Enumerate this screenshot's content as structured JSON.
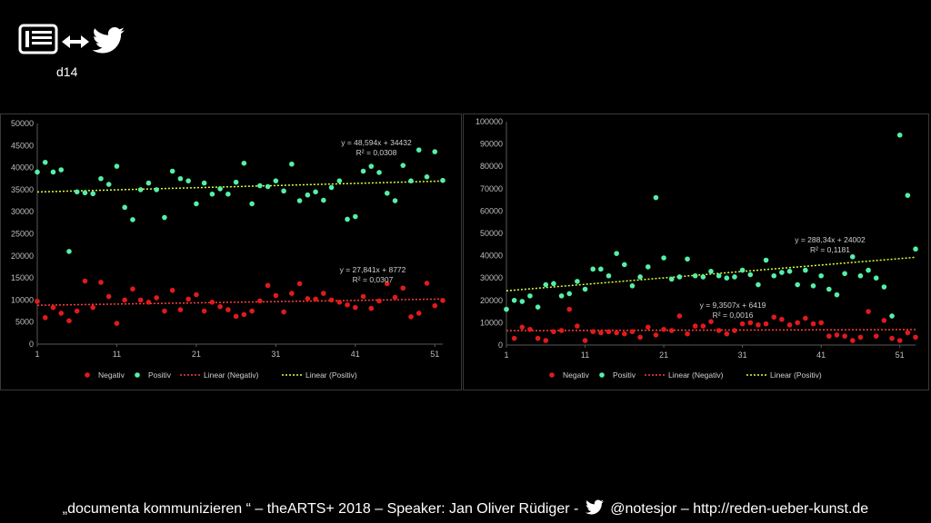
{
  "header": {
    "label": "d14",
    "icons": [
      "newspaper-icon",
      "bidirectional-arrow-icon",
      "twitter-bird-icon"
    ]
  },
  "footer": {
    "text_before": "„documenta kommunizieren “ – theARTS+ 2018 – Speaker: Jan Oliver Rüdiger -",
    "text_after": "@notesjor – http://reden-ueber-kunst.de",
    "icon": "twitter-bird-icon"
  },
  "colors": {
    "negativ": "#e01b1b",
    "positiv": "#55efa8",
    "trend_neg": "#ff3b3b",
    "trend_pos": "#d9ff3a",
    "axis": "#bfbfbf",
    "grid": "#595959"
  },
  "chart_data": [
    {
      "type": "scatter",
      "title": "",
      "xlabel": "",
      "ylabel": "",
      "xlim": [
        1,
        52
      ],
      "ylim": [
        0,
        50000
      ],
      "yticks": [
        "0",
        "5000",
        "10000",
        "15000",
        "20000",
        "25000",
        "30000",
        "35000",
        "40000",
        "45000",
        "50000"
      ],
      "xticks": [
        "1",
        "11",
        "21",
        "31",
        "41",
        "51"
      ],
      "legend": [
        "Negativ",
        "Positiv",
        "Linear (Negativ)",
        "Linear (Positiv)"
      ],
      "series": [
        {
          "name": "Negativ",
          "x": [
            1,
            2,
            3,
            4,
            5,
            6,
            7,
            8,
            9,
            10,
            11,
            12,
            13,
            14,
            15,
            16,
            17,
            18,
            19,
            20,
            21,
            22,
            23,
            24,
            25,
            26,
            27,
            28,
            29,
            30,
            31,
            32,
            33,
            34,
            35,
            36,
            37,
            38,
            39,
            40,
            41,
            42,
            43,
            44,
            45,
            46,
            47,
            48,
            49,
            50,
            51,
            52
          ],
          "values": [
            9700,
            6000,
            8300,
            7000,
            5300,
            7500,
            14300,
            8300,
            14000,
            10800,
            4700,
            10000,
            12500,
            10000,
            9500,
            10500,
            7500,
            12200,
            7800,
            10200,
            11200,
            7500,
            9500,
            8500,
            7800,
            6300,
            6700,
            7500,
            9800,
            13300,
            11000,
            7300,
            11500,
            13700,
            10300,
            10200,
            11500,
            10000,
            9500,
            8900,
            8300,
            10800,
            8100,
            9800,
            13700,
            10600,
            12700,
            6200,
            7000,
            13800,
            8700,
            9900
          ]
        },
        {
          "name": "Positiv",
          "x": [
            1,
            2,
            3,
            4,
            5,
            6,
            7,
            8,
            9,
            10,
            11,
            12,
            13,
            14,
            15,
            16,
            17,
            18,
            19,
            20,
            21,
            22,
            23,
            24,
            25,
            26,
            27,
            28,
            29,
            30,
            31,
            32,
            33,
            34,
            35,
            36,
            37,
            38,
            39,
            40,
            41,
            42,
            43,
            44,
            45,
            46,
            47,
            48,
            49,
            50,
            51,
            52
          ],
          "values": [
            39000,
            41200,
            39000,
            39500,
            21000,
            34500,
            34300,
            34100,
            37500,
            36200,
            40300,
            31000,
            28200,
            35000,
            36500,
            35000,
            28700,
            39200,
            37500,
            37000,
            31800,
            36500,
            34000,
            35200,
            34000,
            36700,
            41000,
            31800,
            35900,
            35700,
            37000,
            34700,
            40800,
            32500,
            33800,
            34500,
            32600,
            35500,
            37000,
            28300,
            28900,
            39200,
            40300,
            38900,
            34200,
            32500,
            40500,
            37000,
            44000,
            37900,
            43600,
            37100
          ]
        },
        {
          "name": "Linear (Negativ)",
          "equation": "y = 27,841x + 8772",
          "r2": "R² = 0,0307",
          "slope": 27.841,
          "intercept": 8772
        },
        {
          "name": "Linear (Positiv)",
          "equation": "y = 48,594x + 34432",
          "r2": "R² = 0,0308",
          "slope": 48.594,
          "intercept": 34432
        }
      ]
    },
    {
      "type": "scatter",
      "title": "",
      "xlabel": "",
      "ylabel": "",
      "xlim": [
        1,
        53
      ],
      "ylim": [
        0,
        100000
      ],
      "yticks": [
        "0",
        "10000",
        "20000",
        "30000",
        "40000",
        "50000",
        "60000",
        "70000",
        "80000",
        "90000",
        "100000"
      ],
      "xticks": [
        "1",
        "11",
        "21",
        "31",
        "41",
        "51"
      ],
      "legend": [
        "Negativ",
        "Positiv",
        "Linear (Negativ)",
        "Linear (Positiv)"
      ],
      "series": [
        {
          "name": "Negativ",
          "x": [
            1,
            2,
            3,
            4,
            5,
            6,
            7,
            8,
            9,
            10,
            11,
            12,
            13,
            14,
            15,
            16,
            17,
            18,
            19,
            20,
            21,
            22,
            23,
            24,
            25,
            26,
            27,
            28,
            29,
            30,
            31,
            32,
            33,
            34,
            35,
            36,
            37,
            38,
            39,
            40,
            41,
            42,
            43,
            44,
            45,
            46,
            47,
            48,
            49,
            50,
            51,
            52,
            53
          ],
          "values": [
            16000,
            3000,
            8000,
            7000,
            3000,
            2000,
            6000,
            6500,
            16000,
            8500,
            2000,
            6000,
            5500,
            6000,
            5500,
            5000,
            6000,
            3500,
            8000,
            4500,
            7000,
            6500,
            13000,
            5000,
            8500,
            8500,
            10500,
            6500,
            5000,
            6500,
            9500,
            10000,
            9000,
            9500,
            12500,
            11500,
            9000,
            10000,
            12000,
            9500,
            10000,
            4000,
            4500,
            4000,
            2000,
            3500,
            15000,
            4000,
            11000,
            3000,
            2000,
            5500,
            3500
          ]
        },
        {
          "name": "Positiv",
          "x": [
            1,
            2,
            3,
            4,
            5,
            6,
            7,
            8,
            9,
            10,
            11,
            12,
            13,
            14,
            15,
            16,
            17,
            18,
            19,
            20,
            21,
            22,
            23,
            24,
            25,
            26,
            27,
            28,
            29,
            30,
            31,
            32,
            33,
            34,
            35,
            36,
            37,
            38,
            39,
            40,
            41,
            42,
            43,
            44,
            45,
            46,
            47,
            48,
            49,
            50,
            51,
            52,
            53
          ],
          "values": [
            16000,
            20000,
            19500,
            22000,
            17000,
            27000,
            27500,
            22000,
            23000,
            28500,
            25000,
            34000,
            34000,
            31000,
            41000,
            36000,
            26500,
            30500,
            35000,
            66000,
            39000,
            29500,
            30500,
            38500,
            31000,
            30500,
            33000,
            31000,
            30000,
            30500,
            33500,
            31500,
            27000,
            38000,
            31000,
            32500,
            33000,
            27000,
            33500,
            26500,
            31000,
            25000,
            22500,
            32000,
            39500,
            31000,
            33500,
            30000,
            26000,
            13000,
            94000,
            67000,
            43000
          ]
        },
        {
          "name": "Linear (Negativ)",
          "equation": "y = 9,3507x + 6419",
          "r2": "R² = 0,0016",
          "slope": 9.3507,
          "intercept": 6419
        },
        {
          "name": "Linear (Positiv)",
          "equation": "y = 288,34x + 24002",
          "r2": "R² = 0,1181",
          "slope": 288.34,
          "intercept": 24002
        }
      ]
    }
  ]
}
